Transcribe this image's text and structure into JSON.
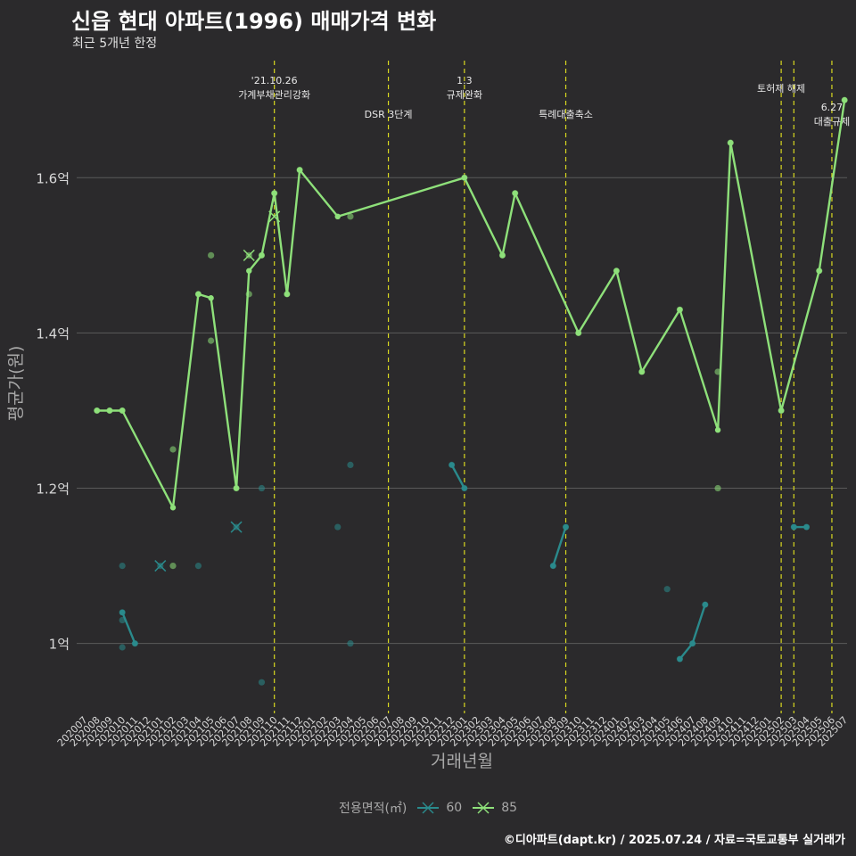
{
  "title": "신읍 현대 아파트(1996) 매매가격 변화",
  "subtitle": "최근 5개년 한정",
  "caption": "©디아파트(dapt.kr) / 2025.07.24 / 자료=국토교통부 실거래가",
  "colors": {
    "background": "#2b2a2c",
    "grid": "#5a5a5a",
    "series_60": "#2a8a8c",
    "series_85": "#8ee07a",
    "vline": "#d8d820"
  },
  "chart_data": {
    "type": "line",
    "xlabel": "거래년월",
    "ylabel": "평균가(원)",
    "ylim": [
      0.91,
      1.76
    ],
    "yticks": [
      1.0,
      1.2,
      1.4,
      1.6
    ],
    "yticklabels": [
      "1억",
      "1.2억",
      "1.4억",
      "1.6억"
    ],
    "grid": true,
    "legend_title": "전용면적(㎡)",
    "legend_position": "bottom",
    "x_categories": [
      "202007",
      "202008",
      "202009",
      "202010",
      "202011",
      "202012",
      "202101",
      "202102",
      "202103",
      "202104",
      "202105",
      "202106",
      "202107",
      "202108",
      "202109",
      "202110",
      "202111",
      "202112",
      "202201",
      "202202",
      "202203",
      "202204",
      "202205",
      "202206",
      "202207",
      "202208",
      "202209",
      "202210",
      "202211",
      "202212",
      "202301",
      "202302",
      "202303",
      "202304",
      "202305",
      "202306",
      "202307",
      "202308",
      "202309",
      "202310",
      "202311",
      "202312",
      "202401",
      "202402",
      "202403",
      "202404",
      "202405",
      "202406",
      "202407",
      "202408",
      "202409",
      "202410",
      "202411",
      "202412",
      "202501",
      "202502",
      "202503",
      "202504",
      "202505",
      "202506",
      "202507"
    ],
    "series": [
      {
        "name": "60",
        "color": "#2a8a8c",
        "line": [
          {
            "segment": [
              [
                202010,
                1.04
              ],
              [
                202011,
                1.0
              ]
            ]
          },
          {
            "segment": [
              [
                202212,
                1.23
              ],
              [
                202301,
                1.2
              ]
            ]
          },
          {
            "segment": [
              [
                202308,
                1.1
              ],
              [
                202309,
                1.15
              ]
            ]
          },
          {
            "segment": [
              [
                202406,
                0.98
              ],
              [
                202407,
                1.0
              ],
              [
                202408,
                1.05
              ]
            ]
          },
          {
            "segment": [
              [
                202503,
                1.15
              ],
              [
                202504,
                1.15
              ]
            ]
          }
        ],
        "points": [
          [
            202010,
            1.1
          ],
          [
            202010,
            1.03
          ],
          [
            202010,
            0.995
          ],
          [
            202010,
            1.04
          ],
          [
            202011,
            1.0
          ],
          [
            202101,
            1.1
          ],
          [
            202104,
            1.1
          ],
          [
            202107,
            1.15
          ],
          [
            202109,
            1.2
          ],
          [
            202109,
            0.95
          ],
          [
            202203,
            1.15
          ],
          [
            202204,
            1.23
          ],
          [
            202204,
            1.0
          ],
          [
            202212,
            1.23
          ],
          [
            202301,
            1.2
          ],
          [
            202308,
            1.1
          ],
          [
            202309,
            1.15
          ],
          [
            202405,
            1.07
          ],
          [
            202406,
            0.98
          ],
          [
            202407,
            1.0
          ],
          [
            202408,
            1.05
          ],
          [
            202503,
            1.15
          ],
          [
            202504,
            1.15
          ]
        ],
        "cancelled": [
          [
            202101,
            1.1
          ],
          [
            202107,
            1.15
          ]
        ]
      },
      {
        "name": "85",
        "color": "#8ee07a",
        "line": [
          {
            "segment": [
              [
                202008,
                1.3
              ],
              [
                202009,
                1.3
              ],
              [
                202010,
                1.3
              ],
              [
                202102,
                1.175
              ],
              [
                202104,
                1.45
              ],
              [
                202105,
                1.445
              ],
              [
                202107,
                1.2
              ],
              [
                202108,
                1.48
              ],
              [
                202109,
                1.5
              ],
              [
                202110,
                1.58
              ],
              [
                202111,
                1.45
              ],
              [
                202112,
                1.61
              ],
              [
                202203,
                1.55
              ],
              [
                202301,
                1.6
              ],
              [
                202304,
                1.5
              ],
              [
                202305,
                1.58
              ],
              [
                202310,
                1.4
              ],
              [
                202401,
                1.48
              ],
              [
                202403,
                1.35
              ],
              [
                202406,
                1.43
              ],
              [
                202409,
                1.275
              ],
              [
                202410,
                1.645
              ],
              [
                202502,
                1.3
              ],
              [
                202505,
                1.48
              ],
              [
                202507,
                1.7
              ]
            ]
          }
        ],
        "points": [
          [
            202008,
            1.3
          ],
          [
            202009,
            1.3
          ],
          [
            202010,
            1.3
          ],
          [
            202102,
            1.25
          ],
          [
            202102,
            1.1
          ],
          [
            202104,
            1.45
          ],
          [
            202105,
            1.5
          ],
          [
            202105,
            1.39
          ],
          [
            202107,
            1.2
          ],
          [
            202108,
            1.5
          ],
          [
            202108,
            1.45
          ],
          [
            202109,
            1.5
          ],
          [
            202110,
            1.58
          ],
          [
            202111,
            1.45
          ],
          [
            202112,
            1.61
          ],
          [
            202204,
            1.55
          ],
          [
            202301,
            1.6
          ],
          [
            202304,
            1.5
          ],
          [
            202305,
            1.58
          ],
          [
            202310,
            1.4
          ],
          [
            202401,
            1.48
          ],
          [
            202403,
            1.35
          ],
          [
            202406,
            1.43
          ],
          [
            202409,
            1.35
          ],
          [
            202409,
            1.2
          ],
          [
            202410,
            1.645
          ],
          [
            202502,
            1.3
          ],
          [
            202505,
            1.48
          ],
          [
            202507,
            1.7
          ]
        ],
        "cancelled": [
          [
            202108,
            1.5
          ],
          [
            202110,
            1.55
          ]
        ]
      }
    ],
    "events": [
      {
        "x": 202110,
        "lines": [
          "'21.10.26",
          "가계부채관리강화"
        ],
        "level": 1
      },
      {
        "x": 202207,
        "lines": [
          "DSR 3단계"
        ],
        "level": 2
      },
      {
        "x": 202301,
        "lines": [
          "1.3",
          "규제완화"
        ],
        "level": 1
      },
      {
        "x": 202309,
        "lines": [
          "특례대출축소"
        ],
        "level": 2
      },
      {
        "x": 202502,
        "lines": [
          "토허제 해제"
        ],
        "level": 0
      },
      {
        "x": 202503,
        "lines": [],
        "level": 0
      },
      {
        "x": 202506,
        "lines": [
          "6.27",
          "대출규제"
        ],
        "level": 3
      }
    ]
  }
}
